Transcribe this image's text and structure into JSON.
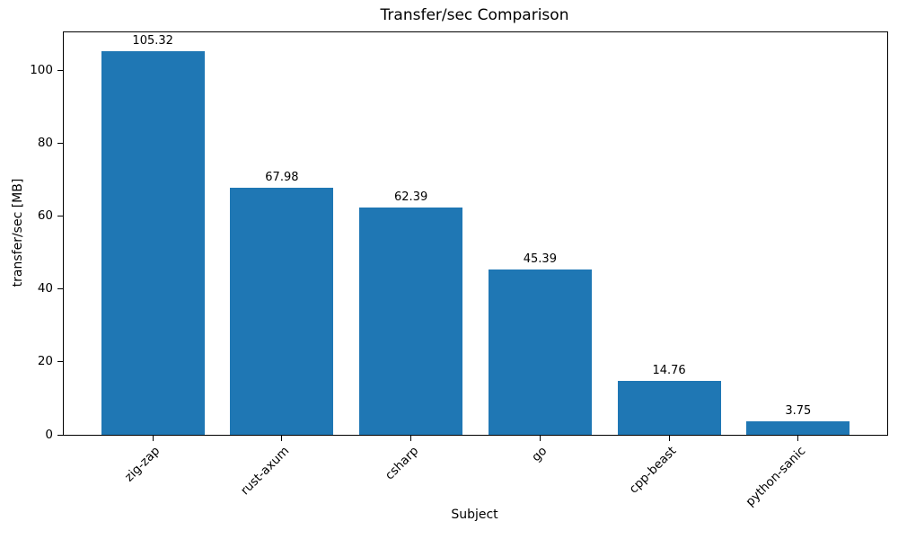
{
  "chart_data": {
    "type": "bar",
    "title": "Transfer/sec Comparison",
    "xlabel": "Subject",
    "ylabel": "transfer/sec [MB]",
    "categories": [
      "zig-zap",
      "rust-axum",
      "csharp",
      "go",
      "cpp-beast",
      "python-sanic"
    ],
    "values": [
      105.32,
      67.98,
      62.39,
      45.39,
      14.76,
      3.75
    ],
    "value_labels": [
      "105.32",
      "67.98",
      "62.39",
      "45.39",
      "14.76",
      "3.75"
    ],
    "yticks": [
      0,
      20,
      40,
      60,
      80,
      100
    ],
    "ylim": [
      0,
      110.6
    ],
    "xlim": [
      -0.69,
      5.69
    ],
    "bar_width_units": 0.8,
    "x_tick_rotation_deg": 45,
    "grid": false,
    "legend": null,
    "bar_color": "#1f77b4",
    "axis_color": "#000000",
    "background_color": "#ffffff"
  }
}
